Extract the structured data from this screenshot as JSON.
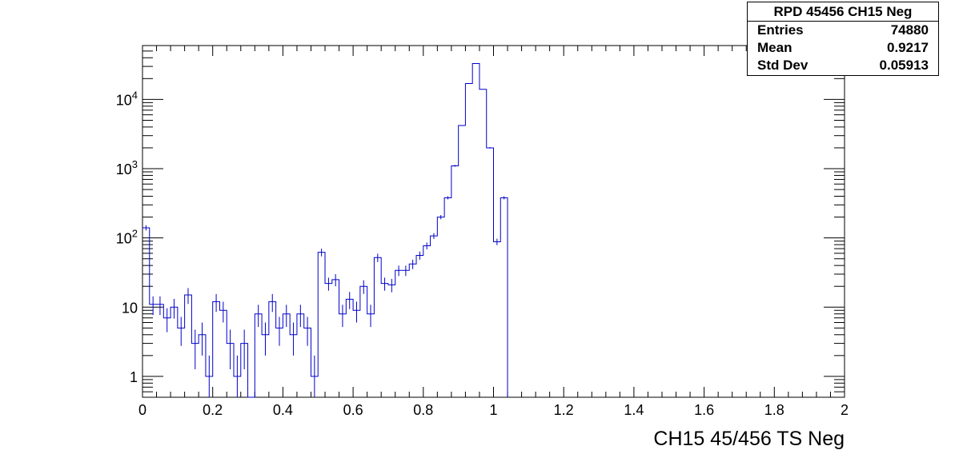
{
  "stats": {
    "title": "RPD 45456 CH15 Neg",
    "rows": [
      {
        "label": "Entries",
        "value": "74880"
      },
      {
        "label": "Mean",
        "value": "0.9217"
      },
      {
        "label": "Std Dev",
        "value": "0.05913"
      }
    ]
  },
  "chart_data": {
    "type": "bar",
    "title": "RPD 45456 CH15 Neg",
    "xlabel": "CH15 45/456 TS Neg",
    "ylabel": "",
    "xlim": [
      0,
      2
    ],
    "ylim": [
      0.5,
      60000
    ],
    "yscale": "log",
    "bin_width": 0.02,
    "x_ticks": [
      "0",
      "0.2",
      "0.4",
      "0.6",
      "0.8",
      "1",
      "1.2",
      "1.4",
      "1.6",
      "1.8",
      "2"
    ],
    "y_ticks": [
      {
        "value": 1,
        "base": "1",
        "exp": ""
      },
      {
        "value": 10,
        "base": "10",
        "exp": ""
      },
      {
        "value": 100,
        "base": "10",
        "exp": "2"
      },
      {
        "value": 1000,
        "base": "10",
        "exp": "3"
      },
      {
        "value": 10000,
        "base": "10",
        "exp": "4"
      }
    ],
    "line_color": "#0000cc",
    "bins_start": 0,
    "values": [
      140,
      11,
      11,
      7,
      10,
      5,
      15,
      3,
      4,
      1,
      12,
      9,
      3,
      1,
      3,
      0,
      8,
      4,
      12,
      5,
      8,
      4,
      8,
      5,
      1,
      62,
      22,
      25,
      8,
      13,
      9,
      20,
      8,
      52,
      22,
      21,
      34,
      34,
      42,
      56,
      77,
      107,
      200,
      380,
      1100,
      4200,
      17000,
      33000,
      14000,
      2000,
      88,
      380
    ]
  }
}
